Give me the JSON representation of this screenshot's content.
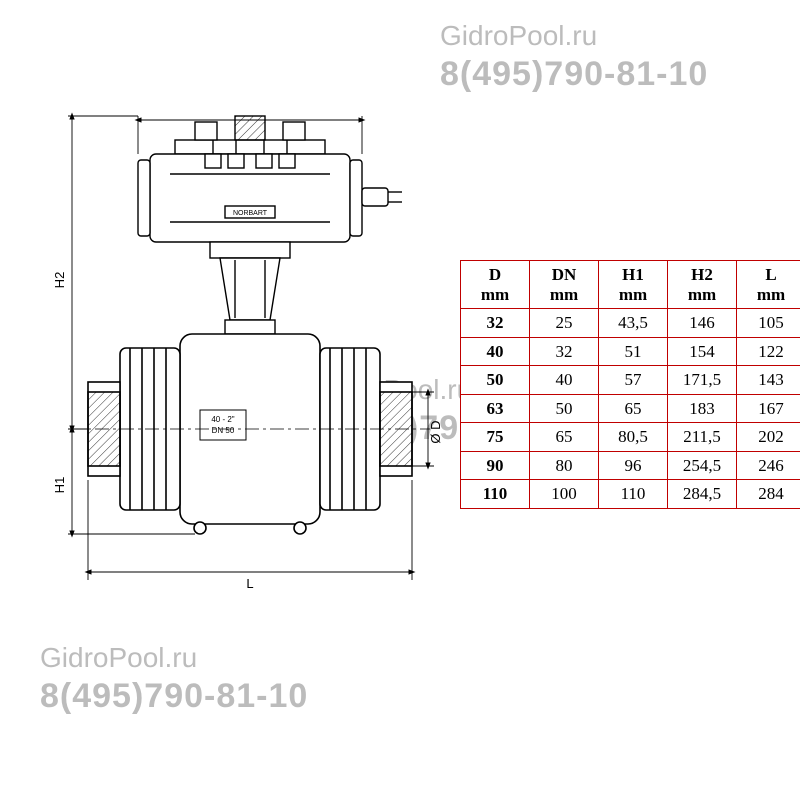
{
  "watermarks": {
    "site": "GidroPool.ru",
    "phone": "8(495)790-81-10"
  },
  "drawing": {
    "labels": {
      "H2": "H2",
      "H1": "H1",
      "L": "L",
      "D": "Ø D",
      "body_line1": "40 - 2\"",
      "body_line2": "DN 50",
      "brand": "NORBART"
    },
    "colors": {
      "stroke": "#000000",
      "hatch": "#000000",
      "dim": "#000000"
    }
  },
  "table": {
    "border_color": "#c00000",
    "columns": [
      {
        "name": "D",
        "unit": "mm"
      },
      {
        "name": "DN",
        "unit": "mm"
      },
      {
        "name": "H1",
        "unit": "mm"
      },
      {
        "name": "H2",
        "unit": "mm"
      },
      {
        "name": "L",
        "unit": "mm"
      }
    ],
    "rows": [
      [
        "32",
        "25",
        "43,5",
        "146",
        "105"
      ],
      [
        "40",
        "32",
        "51",
        "154",
        "122"
      ],
      [
        "50",
        "40",
        "57",
        "171,5",
        "143"
      ],
      [
        "63",
        "50",
        "65",
        "183",
        "167"
      ],
      [
        "75",
        "65",
        "80,5",
        "211,5",
        "202"
      ],
      [
        "90",
        "80",
        "96",
        "254,5",
        "246"
      ],
      [
        "110",
        "100",
        "110",
        "284,5",
        "284"
      ]
    ]
  }
}
